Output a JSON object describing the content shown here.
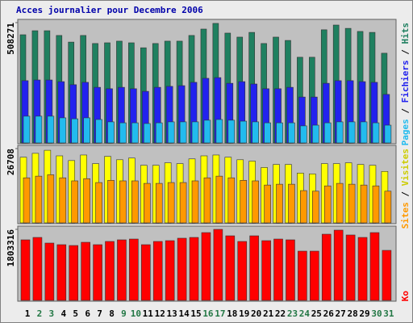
{
  "title": "Acces journalier pour Decembre 2006",
  "legend_separator": " / ",
  "categories": [
    "1",
    "2",
    "3",
    "4",
    "5",
    "6",
    "7",
    "8",
    "9",
    "10",
    "11",
    "12",
    "13",
    "14",
    "15",
    "16",
    "17",
    "18",
    "19",
    "20",
    "21",
    "22",
    "23",
    "24",
    "25",
    "26",
    "27",
    "28",
    "29",
    "30",
    "31"
  ],
  "category_colors": [
    "#000000",
    "#227744",
    "#227744",
    "#000000",
    "#000000",
    "#000000",
    "#000000",
    "#000000",
    "#227744",
    "#227744",
    "#000000",
    "#000000",
    "#000000",
    "#000000",
    "#000000",
    "#227744",
    "#227744",
    "#000000",
    "#000000",
    "#000000",
    "#000000",
    "#000000",
    "#227744",
    "#227744",
    "#000000",
    "#000000",
    "#000000",
    "#000000",
    "#000000",
    "#227744",
    "#227744"
  ],
  "chart_data": [
    {
      "type": "bar",
      "ylim": [
        0,
        508271
      ],
      "yticks": [
        508271
      ],
      "series": [
        {
          "name": "Pages",
          "color": "#22bbee",
          "values": [
            113000,
            113000,
            113000,
            106000,
            102000,
            106000,
            99000,
            89000,
            85000,
            85000,
            82000,
            85000,
            89000,
            89000,
            89000,
            96000,
            99000,
            96000,
            92000,
            89000,
            85000,
            85000,
            85000,
            72000,
            75000,
            85000,
            89000,
            89000,
            89000,
            85000,
            75000
          ]
        },
        {
          "name": "Fichiers",
          "color": "#2222ee",
          "values": [
            263000,
            266000,
            266000,
            259000,
            246000,
            256000,
            235000,
            229000,
            235000,
            229000,
            218000,
            235000,
            239000,
            242000,
            256000,
            273000,
            276000,
            252000,
            259000,
            249000,
            229000,
            229000,
            235000,
            194000,
            194000,
            252000,
            263000,
            263000,
            259000,
            256000,
            205000
          ]
        },
        {
          "name": "Hits",
          "color": "#1f8060",
          "values": [
            457000,
            474000,
            474000,
            454000,
            426000,
            454000,
            420000,
            423000,
            430000,
            423000,
            402000,
            420000,
            430000,
            430000,
            454000,
            481000,
            505000,
            464000,
            447000,
            467000,
            420000,
            447000,
            433000,
            362000,
            362000,
            478000,
            498000,
            484000,
            471000,
            467000,
            379000
          ]
        }
      ]
    },
    {
      "type": "bar",
      "ylim": [
        0,
        26708
      ],
      "yticks": [
        26708
      ],
      "series": [
        {
          "name": "Sites",
          "color": "#ff9900",
          "values": [
            16200,
            16800,
            17300,
            16200,
            15100,
            15900,
            14500,
            15300,
            15100,
            15100,
            14200,
            14200,
            14500,
            14500,
            15100,
            16200,
            16800,
            16200,
            15300,
            15100,
            13600,
            13900,
            13900,
            11600,
            11400,
            13300,
            14200,
            13900,
            13600,
            13300,
            11400
          ]
        },
        {
          "name": "Visites",
          "color": "#ffff00",
          "values": [
            23600,
            25000,
            26100,
            24100,
            22400,
            24400,
            21300,
            23900,
            22700,
            23300,
            20700,
            20700,
            21600,
            21300,
            23000,
            24100,
            24400,
            23600,
            22700,
            22200,
            19900,
            21000,
            21000,
            17900,
            17600,
            21300,
            21300,
            21600,
            21000,
            20700,
            18500
          ]
        }
      ]
    },
    {
      "type": "bar",
      "ylim": [
        0,
        1803316
      ],
      "yticks": [
        1803316
      ],
      "series": [
        {
          "name": "Ko",
          "color": "#ff0000",
          "values": [
            1537000,
            1598000,
            1455000,
            1414000,
            1393000,
            1475000,
            1414000,
            1496000,
            1537000,
            1557000,
            1414000,
            1496000,
            1516000,
            1578000,
            1598000,
            1721000,
            1803000,
            1639000,
            1496000,
            1639000,
            1516000,
            1557000,
            1537000,
            1250000,
            1250000,
            1680000,
            1783000,
            1660000,
            1598000,
            1721000,
            1270000
          ]
        }
      ]
    }
  ]
}
